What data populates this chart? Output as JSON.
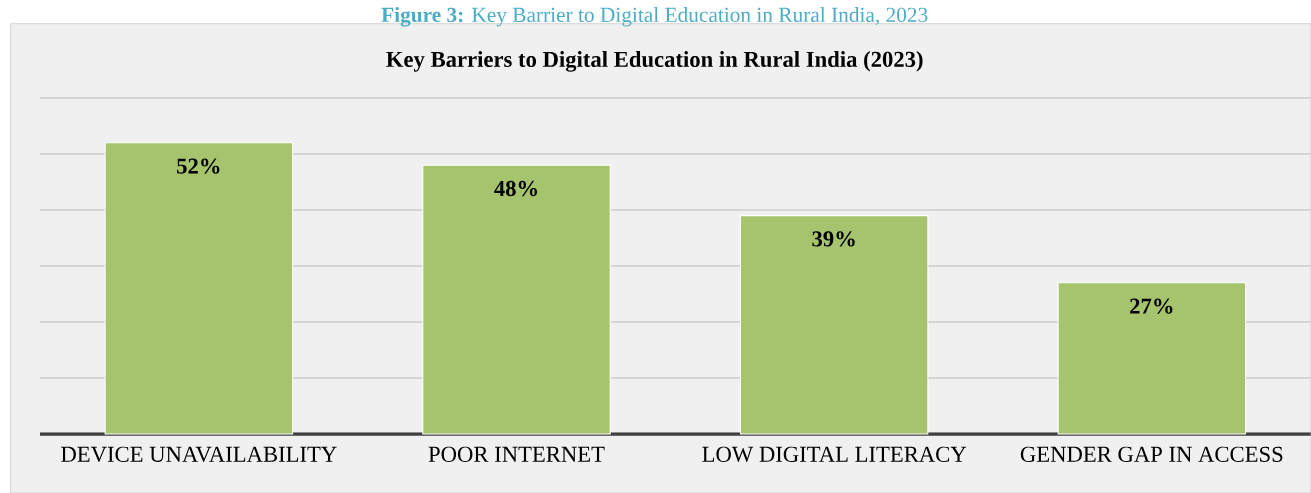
{
  "chart_data": {
    "type": "bar",
    "title": "Key Barriers to Digital Education in Rural India (2023)",
    "annotations": [
      "**Figure 3:** Key Barrier to Digital Education in Rural India, 2023"
    ],
    "categories": [
      "DEVICE UNAVAILABILITY",
      "POOR INTERNET",
      "LOW DIGITAL LITERACY",
      "GENDER GAP IN ACCESS"
    ],
    "values": [
      52,
      48,
      39,
      27
    ],
    "value_labels": [
      "52%",
      "48%",
      "39%",
      "27%"
    ],
    "color": "#a6c36e",
    "ylim": [
      0,
      60
    ],
    "yticks": [
      {
        "value": 0,
        "label": null
      },
      {
        "value": 10,
        "label": null
      },
      {
        "value": 20,
        "label": null
      },
      {
        "value": 30,
        "label": null
      },
      {
        "value": 40,
        "label": null
      },
      {
        "value": 50,
        "label": null
      },
      {
        "value": 60,
        "label": null
      }
    ],
    "grid": "y",
    "tick_labels": "x"
  }
}
